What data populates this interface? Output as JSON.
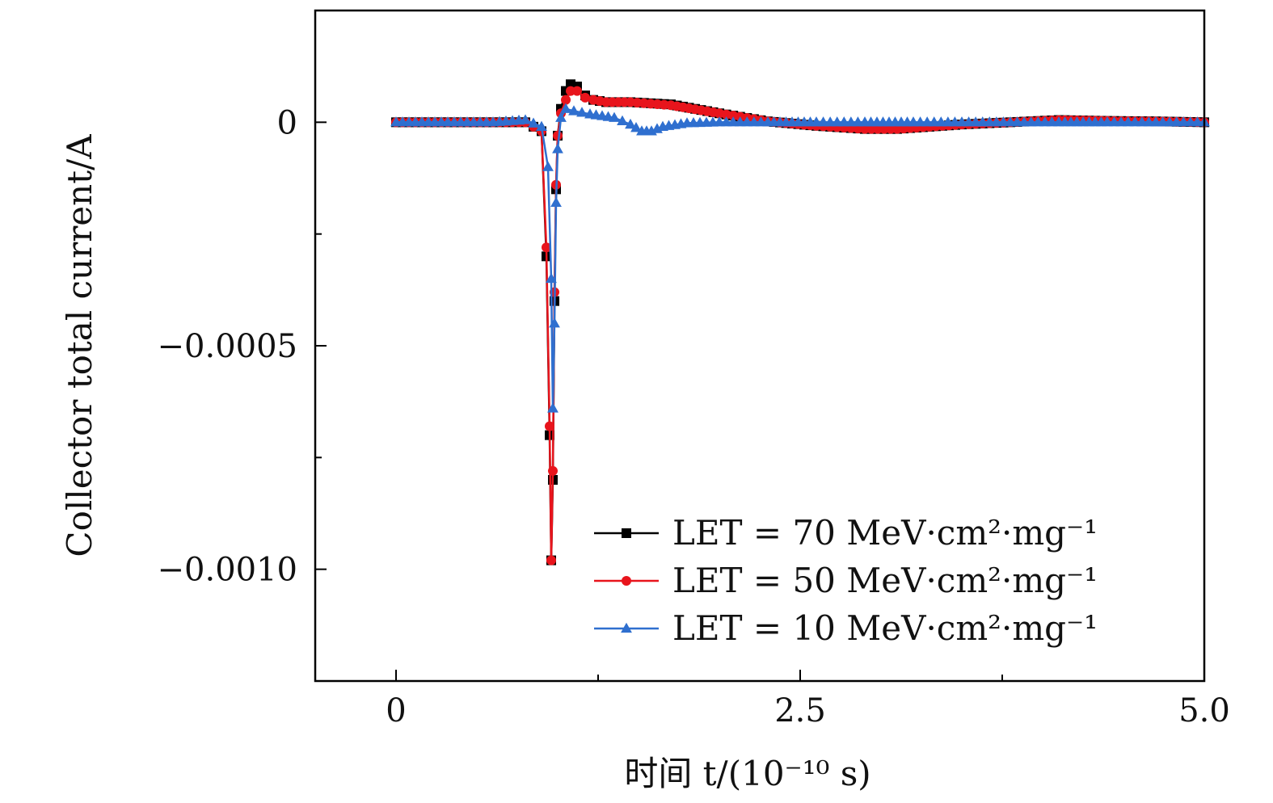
{
  "chart_data": {
    "type": "line",
    "title": "",
    "xlabel": "时间 t/(10⁻¹⁰ s)",
    "ylabel": "Collector total current/A",
    "xlim": [
      -0.5,
      5.0
    ],
    "ylim": [
      -0.00125,
      0.00025
    ],
    "xticks": [
      {
        "value": 0,
        "label": "0"
      },
      {
        "value": 2.5,
        "label": "2.5"
      },
      {
        "value": 5.0,
        "label": "5.0"
      }
    ],
    "x_minor_ticks": [
      1.25,
      3.75
    ],
    "yticks": [
      {
        "value": 0,
        "label": "0"
      },
      {
        "value": -0.0005,
        "label": "−0.0005"
      },
      {
        "value": -0.001,
        "label": "−0.0010"
      }
    ],
    "y_minor_ticks": [
      -0.00025,
      -0.00075
    ],
    "legend_position": "bottom-right",
    "series": [
      {
        "name": "LET = 70 MeV·cm²·mg⁻¹",
        "color": "#000000",
        "marker": "square",
        "x": [
          0,
          0.2,
          0.4,
          0.6,
          0.8,
          0.9,
          0.93,
          0.95,
          0.96,
          0.97,
          0.98,
          0.99,
          1.0,
          1.02,
          1.05,
          1.08,
          1.12,
          1.17,
          1.22,
          1.3,
          1.45,
          1.7,
          2.0,
          2.3,
          2.6,
          2.9,
          3.1,
          3.3,
          3.5,
          3.8,
          4.1,
          4.4,
          4.7,
          5.0
        ],
        "y": [
          0,
          0,
          0,
          0,
          0,
          -2e-05,
          -0.0003,
          -0.0007,
          -0.00098,
          -0.0008,
          -0.0004,
          -0.00015,
          -3e-05,
          3e-05,
          7e-05,
          8.5e-05,
          8e-05,
          6e-05,
          5e-05,
          4.5e-05,
          4.5e-05,
          4e-05,
          2e-05,
          2e-06,
          -8e-06,
          -1.5e-05,
          -1.5e-05,
          -1e-05,
          -5e-06,
          0,
          5e-06,
          3e-06,
          2e-06,
          0
        ]
      },
      {
        "name": "LET = 50 MeV·cm²·mg⁻¹",
        "color": "#e8141c",
        "marker": "circle",
        "x": [
          0,
          0.2,
          0.4,
          0.6,
          0.8,
          0.9,
          0.93,
          0.95,
          0.96,
          0.97,
          0.98,
          0.99,
          1.0,
          1.02,
          1.05,
          1.08,
          1.12,
          1.17,
          1.22,
          1.3,
          1.45,
          1.7,
          2.0,
          2.3,
          2.6,
          2.9,
          3.1,
          3.3,
          3.5,
          3.8,
          4.1,
          4.4,
          4.7,
          5.0
        ],
        "y": [
          0,
          0,
          0,
          0,
          0,
          -2e-05,
          -0.00028,
          -0.00068,
          -0.00098,
          -0.00078,
          -0.00038,
          -0.00014,
          -3e-05,
          2e-05,
          5e-05,
          7e-05,
          7e-05,
          5.5e-05,
          5e-05,
          4.5e-05,
          4.5e-05,
          3.8e-05,
          2e-05,
          2e-06,
          -8e-06,
          -1.5e-05,
          -1.5e-05,
          -1e-05,
          -5e-06,
          0,
          5e-06,
          3e-06,
          2e-06,
          0
        ]
      },
      {
        "name": "LET = 10 MeV·cm²·mg⁻¹",
        "color": "#2f6fcf",
        "marker": "triangle",
        "x": [
          0,
          0.2,
          0.4,
          0.6,
          0.8,
          0.9,
          0.94,
          0.96,
          0.97,
          0.98,
          0.99,
          1.0,
          1.02,
          1.05,
          1.1,
          1.2,
          1.35,
          1.45,
          1.52,
          1.58,
          1.65,
          1.8,
          2.0,
          2.3,
          2.6,
          2.9,
          3.2,
          3.5,
          3.8,
          4.1,
          4.4,
          4.7,
          5.0
        ],
        "y": [
          0,
          0,
          0,
          0,
          5e-06,
          -1e-05,
          -0.0001,
          -0.00035,
          -0.00064,
          -0.00045,
          -0.00018,
          -6e-05,
          1e-05,
          3e-05,
          2.5e-05,
          1.8e-05,
          1e-05,
          -5e-06,
          -2e-05,
          -2e-05,
          -1e-05,
          -2e-06,
          0,
          0,
          0,
          0,
          0,
          0,
          0,
          0,
          0,
          0,
          0
        ]
      }
    ]
  }
}
